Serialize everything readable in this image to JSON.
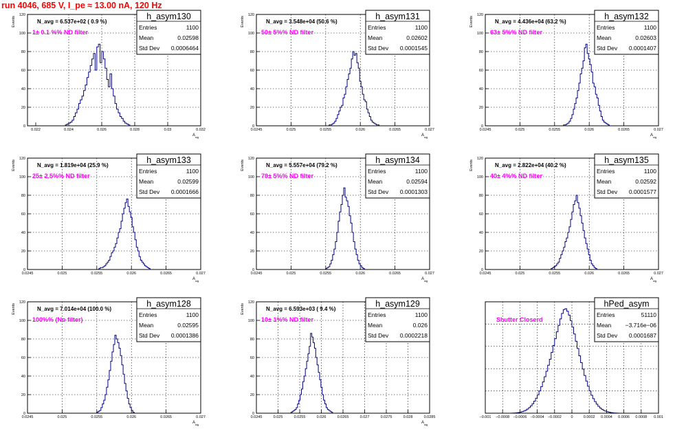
{
  "page": {
    "title": "run 4046,   685 V, I_pe ≈ 13.00 nA, 120 Hz"
  },
  "colors": {
    "histogram_line": "#000080",
    "annotation_magenta": "#ff00ff",
    "title_red": "#ff0000",
    "grid": "#000000",
    "frame": "#000000"
  },
  "chart_data": [
    {
      "type": "bar",
      "name": "h_asym130",
      "stats": {
        "entries_label": "Entries",
        "entries": "1100",
        "mean_label": "Mean",
        "mean": "0.02598",
        "std_label": "Std Dev",
        "std": "0.0006464"
      },
      "navg_text": "N_avg = 6.537e+02 ( 0.9 %)",
      "filter_text": "1± 0.1 %% ND filter",
      "ylabel": "Events",
      "xlabel": "A_sig",
      "xlim": [
        0.0215,
        0.032
      ],
      "ylim": [
        0,
        120
      ],
      "xticks": [
        0.022,
        0.024,
        0.026,
        0.028,
        0.03,
        0.032
      ],
      "xtick_labels": [
        "0.022",
        "0.024",
        "0.026",
        "0.028",
        "0.03",
        "0.032"
      ],
      "yticks": [
        0,
        20,
        40,
        60,
        80,
        100,
        120
      ],
      "grid": true,
      "bins": {
        "start": 0.0238,
        "width": 0.0001,
        "counts": [
          1,
          2,
          3,
          4,
          6,
          10,
          14,
          18,
          24,
          28,
          32,
          38,
          44,
          52,
          58,
          65,
          72,
          78,
          60,
          85,
          88,
          68,
          80,
          72,
          62,
          50,
          42,
          56,
          40,
          32,
          24,
          18,
          14,
          10,
          8,
          5,
          3,
          2,
          1
        ]
      }
    },
    {
      "type": "bar",
      "name": "h_asym131",
      "stats": {
        "entries_label": "Entries",
        "entries": "1100",
        "mean_label": "Mean",
        "mean": "0.02602",
        "std_label": "Std Dev",
        "std": "0.0001545"
      },
      "navg_text": "N_avg = 3.548e+04 (50.6 %)",
      "filter_text": "50± 5%% ND filter",
      "ylabel": "Events",
      "xlabel": "A_sig",
      "xlim": [
        0.0245,
        0.027
      ],
      "ylim": [
        0,
        120
      ],
      "xticks": [
        0.0245,
        0.025,
        0.0255,
        0.026,
        0.0265,
        0.027
      ],
      "xtick_labels": [
        "0.0245",
        "0.025",
        "0.0255",
        "0.026",
        "0.0265",
        "0.027"
      ],
      "yticks": [
        0,
        20,
        40,
        60,
        80,
        100,
        120
      ],
      "grid": true,
      "bins": {
        "start": 0.02555,
        "width": 2e-05,
        "counts": [
          1,
          1,
          2,
          3,
          5,
          8,
          12,
          16,
          20,
          22,
          30,
          34,
          42,
          50,
          56,
          62,
          72,
          80,
          76,
          78,
          68,
          62,
          48,
          42,
          34,
          28,
          26,
          18,
          14,
          10,
          6,
          4,
          3,
          2,
          1,
          1
        ]
      }
    },
    {
      "type": "bar",
      "name": "h_asym132",
      "stats": {
        "entries_label": "Entries",
        "entries": "1100",
        "mean_label": "Mean",
        "mean": "0.02603",
        "std_label": "Std Dev",
        "std": "0.0001407"
      },
      "navg_text": "N_avg = 4.436e+04 (63.2 %)",
      "filter_text": "63± 5%% ND filter",
      "ylabel": "Events",
      "xlabel": "A_sig",
      "xlim": [
        0.0245,
        0.027
      ],
      "ylim": [
        0,
        120
      ],
      "xticks": [
        0.0245,
        0.025,
        0.0255,
        0.026,
        0.0265,
        0.027
      ],
      "xtick_labels": [
        "0.0245",
        "0.025",
        "0.0255",
        "0.026",
        "0.0265",
        "0.027"
      ],
      "yticks": [
        0,
        20,
        40,
        60,
        80,
        100,
        120
      ],
      "grid": true,
      "bins": {
        "start": 0.02563,
        "width": 2e-05,
        "counts": [
          1,
          1,
          2,
          3,
          5,
          8,
          12,
          18,
          24,
          30,
          38,
          46,
          56,
          62,
          70,
          84,
          88,
          78,
          72,
          66,
          58,
          46,
          42,
          34,
          30,
          22,
          16,
          10,
          6,
          4,
          3,
          2,
          1
        ]
      }
    },
    {
      "type": "bar",
      "name": "h_asym133",
      "stats": {
        "entries_label": "Entries",
        "entries": "1100",
        "mean_label": "Mean",
        "mean": "0.02599",
        "std_label": "Std Dev",
        "std": "0.0001666"
      },
      "navg_text": "N_avg = 1.819e+04 (25.9 %)",
      "filter_text": "25± 2.5%% ND filter",
      "ylabel": "Events",
      "xlabel": "A_sig",
      "xlim": [
        0.0245,
        0.027
      ],
      "ylim": [
        0,
        120
      ],
      "xticks": [
        0.0245,
        0.025,
        0.0255,
        0.026,
        0.0265,
        0.027
      ],
      "xtick_labels": [
        "0.0245",
        "0.025",
        "0.0255",
        "0.026",
        "0.0265",
        "0.027"
      ],
      "yticks": [
        0,
        20,
        40,
        60,
        80,
        100,
        120
      ],
      "grid": true,
      "bins": {
        "start": 0.02553,
        "width": 2e-05,
        "counts": [
          1,
          2,
          2,
          3,
          4,
          6,
          8,
          10,
          14,
          18,
          20,
          24,
          28,
          34,
          40,
          44,
          52,
          60,
          66,
          72,
          76,
          68,
          62,
          56,
          46,
          40,
          32,
          24,
          20,
          14,
          10,
          8,
          6,
          4,
          3,
          2,
          1
        ]
      }
    },
    {
      "type": "bar",
      "name": "h_asym134",
      "stats": {
        "entries_label": "Entries",
        "entries": "1100",
        "mean_label": "Mean",
        "mean": "0.02594",
        "std_label": "Std Dev",
        "std": "0.0001303"
      },
      "navg_text": "N_avg = 5.557e+04 (79.2 %)",
      "filter_text": "79± 5%% ND filter",
      "ylabel": "Events",
      "xlabel": "A_sig",
      "xlim": [
        0.0245,
        0.027
      ],
      "ylim": [
        0,
        120
      ],
      "xticks": [
        0.0245,
        0.025,
        0.0255,
        0.026,
        0.0265,
        0.027
      ],
      "xtick_labels": [
        "0.0245",
        "0.025",
        "0.0255",
        "0.026",
        "0.0265",
        "0.027"
      ],
      "yticks": [
        0,
        20,
        40,
        60,
        80,
        100,
        120
      ],
      "grid": true,
      "bins": {
        "start": 0.0255,
        "width": 2e-05,
        "counts": [
          1,
          2,
          3,
          6,
          10,
          16,
          22,
          30,
          40,
          52,
          62,
          70,
          80,
          88,
          78,
          74,
          68,
          58,
          50,
          40,
          30,
          22,
          16,
          10,
          6,
          4,
          2,
          1
        ]
      }
    },
    {
      "type": "bar",
      "name": "h_asym135",
      "stats": {
        "entries_label": "Entries",
        "entries": "1100",
        "mean_label": "Mean",
        "mean": "0.02592",
        "std_label": "Std Dev",
        "std": "0.0001577"
      },
      "navg_text": "N_avg = 2.822e+04 (40.2 %)",
      "filter_text": "40± 4%% ND filter",
      "ylabel": "Events",
      "xlabel": "A_sig",
      "xlim": [
        0.0245,
        0.027
      ],
      "ylim": [
        0,
        120
      ],
      "xticks": [
        0.0245,
        0.025,
        0.0255,
        0.026,
        0.0265,
        0.027
      ],
      "xtick_labels": [
        "0.0245",
        "0.025",
        "0.0255",
        "0.026",
        "0.0265",
        "0.027"
      ],
      "yticks": [
        0,
        20,
        40,
        60,
        80,
        100,
        120
      ],
      "grid": true,
      "bins": {
        "start": 0.02545,
        "width": 2e-05,
        "counts": [
          1,
          2,
          3,
          4,
          6,
          8,
          12,
          16,
          20,
          24,
          30,
          34,
          40,
          46,
          54,
          62,
          70,
          74,
          80,
          72,
          66,
          58,
          50,
          42,
          34,
          28,
          22,
          16,
          10,
          6,
          4,
          2,
          1
        ]
      }
    },
    {
      "type": "bar",
      "name": "h_asym128",
      "stats": {
        "entries_label": "Entries",
        "entries": "1100",
        "mean_label": "Mean",
        "mean": "0.02595",
        "std_label": "Std Dev",
        "std": "0.0001386"
      },
      "navg_text": "N_avg = 7.014e+04 (100.0 %)",
      "filter_text": "100%% (No filter)",
      "ylabel": "Events",
      "xlabel": "A_sig",
      "xlim": [
        0.0245,
        0.027
      ],
      "ylim": [
        0,
        120
      ],
      "xticks": [
        0.0245,
        0.025,
        0.0255,
        0.026,
        0.0265,
        0.027
      ],
      "xtick_labels": [
        "0.0245",
        "0.025",
        "0.0255",
        "0.026",
        "0.0265",
        "0.027"
      ],
      "yticks": [
        0,
        20,
        40,
        60,
        80,
        100,
        120
      ],
      "grid": true,
      "bins": {
        "start": 0.0255,
        "width": 2e-05,
        "counts": [
          1,
          2,
          3,
          6,
          10,
          14,
          20,
          28,
          36,
          46,
          56,
          66,
          74,
          84,
          80,
          76,
          70,
          62,
          52,
          42,
          32,
          24,
          16,
          10,
          6,
          3,
          1
        ]
      }
    },
    {
      "type": "bar",
      "name": "h_asym129",
      "stats": {
        "entries_label": "Entries",
        "entries": "1100",
        "mean_label": "Mean",
        "mean": "0.026",
        "std_label": "Std Dev",
        "std": "0.0002218"
      },
      "navg_text": "N_avg = 6.593e+03 ( 9.4 %)",
      "filter_text": "10± 1%% ND filter",
      "ylabel": "Events",
      "xlabel": "A_sig",
      "xlim": [
        0.0245,
        0.0285
      ],
      "ylim": [
        0,
        120
      ],
      "xticks": [
        0.0245,
        0.025,
        0.0255,
        0.026,
        0.0265,
        0.027,
        0.0275,
        0.028,
        0.0285
      ],
      "xtick_labels": [
        "0.0245",
        "0.025",
        "0.0255",
        "0.026",
        "0.0265",
        "0.027",
        "0.0275",
        "0.028",
        "0.0285"
      ],
      "yticks": [
        0,
        20,
        40,
        60,
        80,
        100,
        120
      ],
      "grid": true,
      "bins": {
        "start": 0.0253,
        "width": 3e-05,
        "counts": [
          1,
          2,
          3,
          4,
          6,
          10,
          14,
          20,
          26,
          34,
          40,
          48,
          56,
          64,
          72,
          86,
          82,
          76,
          70,
          60,
          52,
          44,
          36,
          28,
          20,
          14,
          10,
          6,
          4,
          3,
          2,
          1
        ]
      }
    },
    {
      "type": "bar",
      "name": "hPed_asym",
      "stats": {
        "entries_label": "Entries",
        "entries": "51110",
        "mean_label": "Mean",
        "mean": "−3.716e−06",
        "std_label": "Std Dev",
        "std": "0.0001687"
      },
      "filter_text": "Shutter Closerd",
      "ylabel": "",
      "xlabel": "",
      "xlim": [
        -0.001,
        0.001
      ],
      "ylim": [
        0,
        2600
      ],
      "xticks": [
        -0.001,
        -0.0008,
        -0.0006,
        -0.0004,
        -0.0002,
        0,
        0.0002,
        0.0004,
        0.0006,
        0.0008,
        0.001
      ],
      "xtick_labels": [
        "−0.001",
        "−0.0008",
        "−0.0006",
        "−0.0004",
        "−0.0002",
        "0",
        "0.0002",
        "0.0004",
        "0.0006",
        "0.0008",
        "0.001"
      ],
      "yticks": [],
      "grid": true,
      "bins": {
        "start": -0.00072,
        "width": 2e-05,
        "counts": [
          1,
          2,
          4,
          6,
          10,
          16,
          24,
          36,
          50,
          70,
          96,
          130,
          170,
          220,
          280,
          350,
          430,
          520,
          620,
          730,
          850,
          980,
          1120,
          1260,
          1420,
          1580,
          1740,
          1900,
          2050,
          2200,
          2330,
          2420,
          2440,
          2380,
          2290,
          2160,
          2010,
          1850,
          1680,
          1510,
          1340,
          1180,
          1030,
          880,
          750,
          630,
          520,
          420,
          340,
          270,
          210,
          160,
          120,
          90,
          66,
          48,
          34,
          24,
          16,
          10,
          6,
          4,
          2,
          1
        ]
      }
    }
  ]
}
